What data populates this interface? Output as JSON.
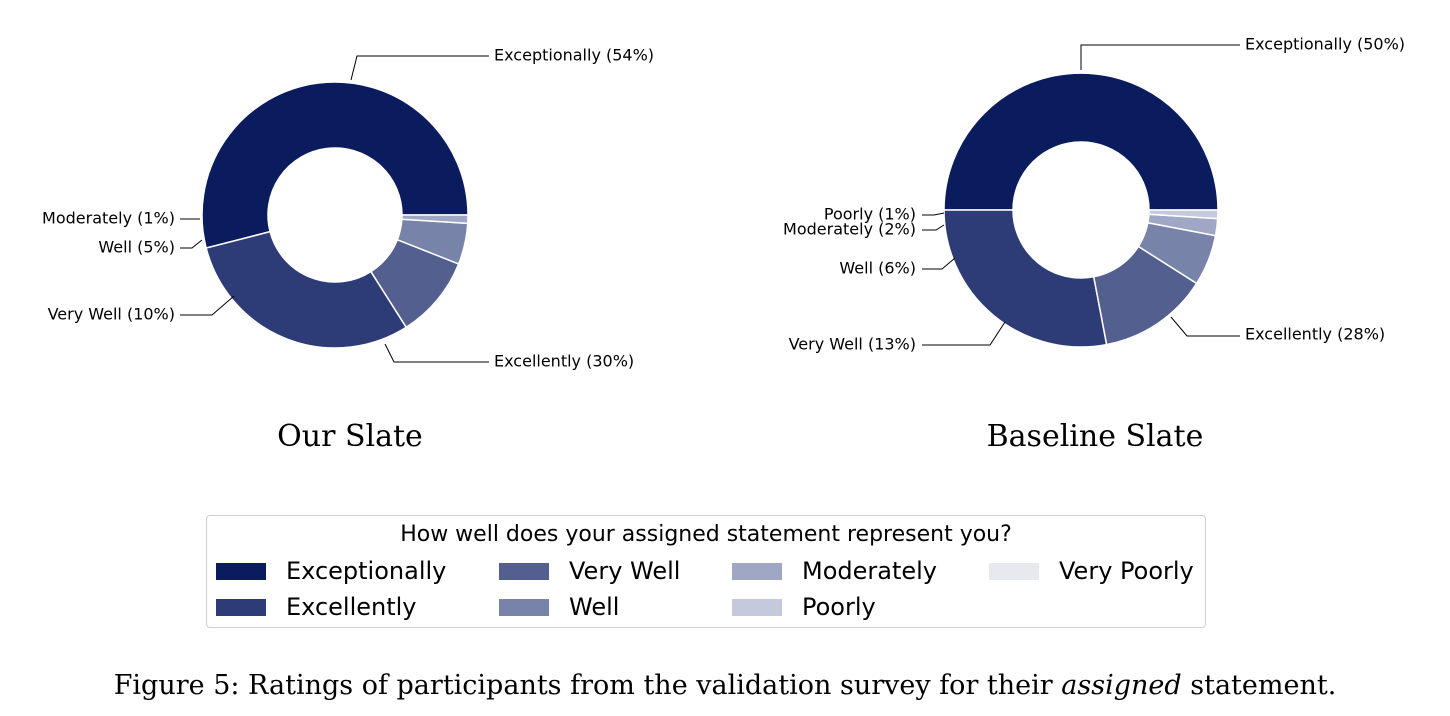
{
  "chart_data": [
    {
      "type": "pie",
      "variant": "donut",
      "title": "Our Slate",
      "slices": [
        {
          "category": "Exceptionally",
          "value": 54,
          "label": "Exceptionally (54%)",
          "color": "#0a1b5e"
        },
        {
          "category": "Excellently",
          "value": 30,
          "label": "Excellently (30%)",
          "color": "#2d3c76"
        },
        {
          "category": "Very Well",
          "value": 10,
          "label": "Very Well (10%)",
          "color": "#525f8f"
        },
        {
          "category": "Well",
          "value": 5,
          "label": "Well (5%)",
          "color": "#7883a9"
        },
        {
          "category": "Moderately",
          "value": 1,
          "label": "Moderately (1%)",
          "color": "#a0a7c4"
        }
      ]
    },
    {
      "type": "pie",
      "variant": "donut",
      "title": "Baseline Slate",
      "slices": [
        {
          "category": "Exceptionally",
          "value": 50,
          "label": "Exceptionally (50%)",
          "color": "#0a1b5e"
        },
        {
          "category": "Excellently",
          "value": 28,
          "label": "Excellently (28%)",
          "color": "#2d3c76"
        },
        {
          "category": "Very Well",
          "value": 13,
          "label": "Very Well (13%)",
          "color": "#525f8f"
        },
        {
          "category": "Well",
          "value": 6,
          "label": "Well (6%)",
          "color": "#7883a9"
        },
        {
          "category": "Moderately",
          "value": 2,
          "label": "Moderately (2%)",
          "color": "#a0a7c4"
        },
        {
          "category": "Poorly",
          "value": 1,
          "label": "Poorly (1%)",
          "color": "#c5c9dc"
        }
      ]
    }
  ],
  "legend": {
    "title": "How well does your assigned statement represent you?",
    "placement": "bottom-center",
    "items": [
      {
        "label": "Exceptionally",
        "color": "#0a1b5e"
      },
      {
        "label": "Excellently",
        "color": "#2d3c76"
      },
      {
        "label": "Very Well",
        "color": "#525f8f"
      },
      {
        "label": "Well",
        "color": "#7883a9"
      },
      {
        "label": "Moderately",
        "color": "#a0a7c4"
      },
      {
        "label": "Poorly",
        "color": "#c5c9dc"
      },
      {
        "label": "Very Poorly",
        "color": "#e8e9ef"
      }
    ]
  },
  "caption": {
    "prefix": "Figure 5: Ratings of participants from the validation survey for their ",
    "emphasis": "assigned",
    "suffix": " statement."
  }
}
